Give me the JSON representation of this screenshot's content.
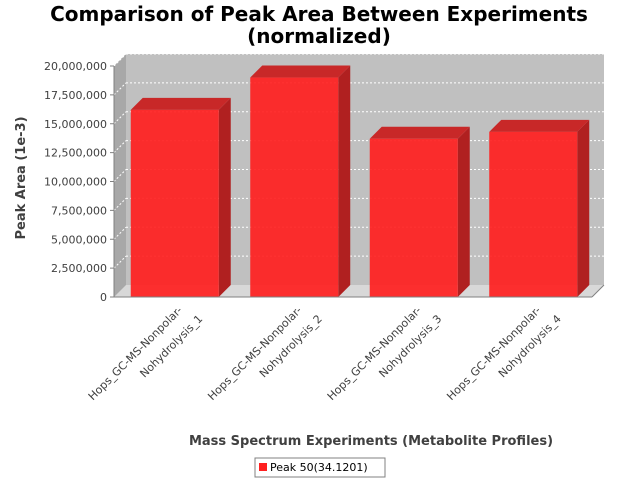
{
  "chart_data": {
    "type": "bar",
    "title_lines": [
      "Comparison of Peak Area Between Experiments",
      "(normalized)"
    ],
    "xlabel": "Mass Spectrum Experiments (Metabolite Profiles)",
    "ylabel": "Peak Area (1e-3)",
    "ylim": [
      0,
      20000000
    ],
    "yticks": [
      0,
      2500000,
      5000000,
      7500000,
      10000000,
      12500000,
      15000000,
      17500000,
      20000000
    ],
    "ytick_labels": [
      "0",
      "2,500,000",
      "5,000,000",
      "7,500,000",
      "10,000,000",
      "12,500,000",
      "15,000,000",
      "17,500,000",
      "20,000,000"
    ],
    "categories": [
      [
        "Hops_GC-MS-Nonpolar-",
        "Nohydrolysis_1"
      ],
      [
        "Hops_GC-MS-Nonpolar-",
        "Nohydrolysis_2"
      ],
      [
        "Hops_GC-MS-Nonpolar-",
        "Nohydrolysis_3"
      ],
      [
        "Hops_GC-MS-Nonpolar-",
        "Nohydrolysis_4"
      ]
    ],
    "series": [
      {
        "name": "Peak 50(34.1201)",
        "values": [
          16200000,
          19000000,
          13700000,
          14300000
        ],
        "color": "#ff2020"
      }
    ],
    "grid": true,
    "legend_position": "bottom",
    "plot_background": "#c0c0c0",
    "three_d": true
  }
}
